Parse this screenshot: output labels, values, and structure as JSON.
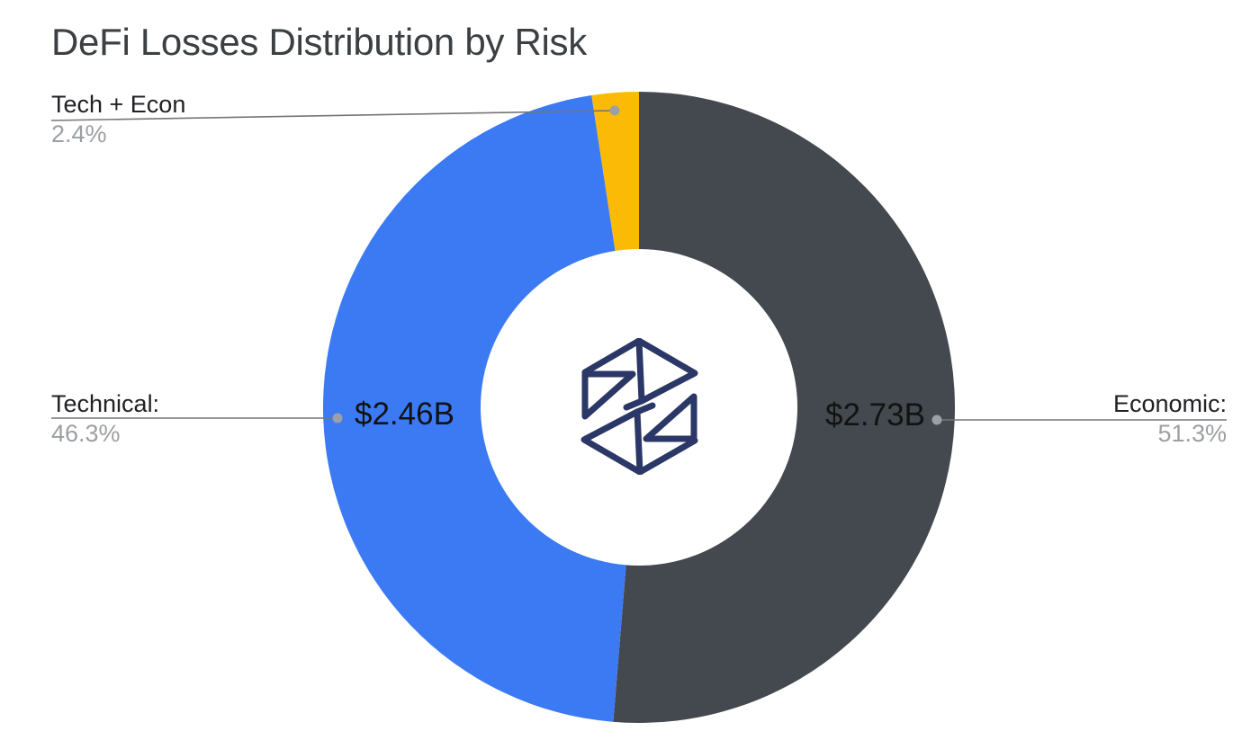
{
  "page": {
    "background": "#ffffff"
  },
  "chart_data": {
    "type": "pie",
    "donut": true,
    "title": "DeFi Losses Distribution by Risk",
    "direction": "clockwise",
    "start_angle_deg": 0,
    "inner_radius_ratio": 0.5,
    "legend_position": "outside-callouts",
    "categories": [
      "Economic",
      "Technical",
      "Tech + Econ"
    ],
    "values": [
      51.3,
      46.3,
      2.4
    ],
    "slices": [
      {
        "label": "Economic",
        "percent": 51.3,
        "percent_label": "51.3%",
        "value_label": "$2.73B",
        "value_usd_billions": 2.73,
        "color": "#43494e"
      },
      {
        "label": "Technical",
        "percent": 46.3,
        "percent_label": "46.3%",
        "value_label": "$2.46B",
        "value_usd_billions": 2.46,
        "color": "#3c7af4"
      },
      {
        "label": "Tech + Econ",
        "percent": 2.4,
        "percent_label": "2.4%",
        "value_label": "",
        "color": "#fbba05"
      }
    ]
  },
  "callouts": {
    "tech_econ": {
      "label": "Tech + Econ",
      "percent": "2.4%"
    },
    "technical": {
      "label": "Technical:",
      "percent": "46.3%",
      "value": "$2.46B"
    },
    "economic": {
      "label": "Economic:",
      "percent": "51.3%",
      "value": "$2.73B"
    }
  },
  "logo": {
    "name": "wireframe-cube-logo",
    "color": "#2b3766"
  },
  "colors": {
    "title": "#3c4043",
    "callout_label": "#202124",
    "callout_percent": "#9c9fa3",
    "leader_line": "#757575",
    "leader_dot": "#9aa0a6"
  }
}
